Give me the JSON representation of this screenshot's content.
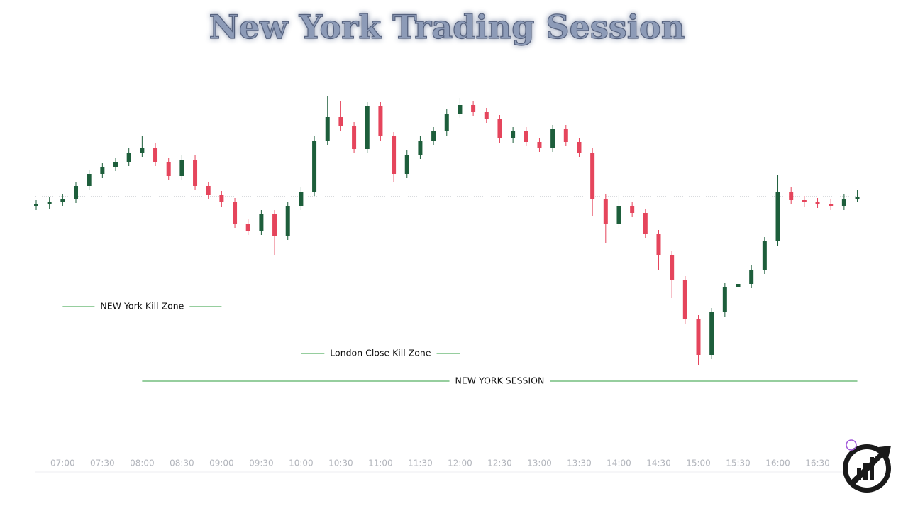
{
  "chart_data": {
    "type": "candlestick",
    "title": "New York Trading Session",
    "x": [
      "06:40",
      "06:50",
      "07:00",
      "07:10",
      "07:20",
      "07:30",
      "07:40",
      "07:50",
      "08:00",
      "08:10",
      "08:20",
      "08:30",
      "08:40",
      "08:50",
      "09:00",
      "09:10",
      "09:20",
      "09:30",
      "09:40",
      "09:50",
      "10:00",
      "10:10",
      "10:20",
      "10:30",
      "10:40",
      "10:50",
      "11:00",
      "11:10",
      "11:20",
      "11:30",
      "11:40",
      "11:50",
      "12:00",
      "12:10",
      "12:20",
      "12:30",
      "12:40",
      "12:50",
      "13:00",
      "13:10",
      "13:20",
      "13:30",
      "13:40",
      "13:50",
      "14:00",
      "14:10",
      "14:20",
      "14:30",
      "14:40",
      "14:50",
      "15:00",
      "15:10",
      "15:20",
      "15:30",
      "15:40",
      "15:50",
      "16:00",
      "16:10",
      "16:20",
      "16:30",
      "16:40",
      "16:50",
      "17:00"
    ],
    "open": [
      290,
      292,
      296,
      300,
      318,
      335,
      345,
      352,
      365,
      372,
      352,
      332,
      355,
      318,
      305,
      295,
      265,
      255,
      278,
      248,
      290,
      310,
      382,
      415,
      402,
      370,
      430,
      388,
      335,
      362,
      382,
      395,
      420,
      432,
      422,
      412,
      385,
      395,
      380,
      372,
      398,
      380,
      365,
      300,
      265,
      290,
      280,
      250,
      220,
      185,
      130,
      80,
      140,
      175,
      180,
      200,
      240,
      310,
      298,
      295,
      293,
      290,
      300
    ],
    "high": [
      298,
      302,
      306,
      324,
      341,
      351,
      358,
      371,
      388,
      378,
      358,
      361,
      361,
      324,
      311,
      301,
      271,
      284,
      284,
      296,
      316,
      388,
      445,
      438,
      408,
      436,
      436,
      394,
      368,
      388,
      401,
      426,
      442,
      438,
      428,
      418,
      401,
      401,
      386,
      404,
      404,
      386,
      371,
      306,
      305,
      296,
      286,
      256,
      226,
      191,
      136,
      146,
      181,
      186,
      206,
      246,
      333,
      316,
      304,
      301,
      299,
      306,
      312
    ],
    "low": [
      284,
      286,
      290,
      294,
      312,
      329,
      339,
      346,
      359,
      346,
      326,
      326,
      312,
      299,
      289,
      259,
      249,
      249,
      220,
      242,
      284,
      304,
      376,
      396,
      364,
      364,
      382,
      323,
      329,
      356,
      376,
      389,
      414,
      416,
      406,
      379,
      379,
      374,
      366,
      366,
      374,
      359,
      275,
      238,
      259,
      274,
      244,
      200,
      160,
      124,
      66,
      74,
      134,
      169,
      174,
      194,
      234,
      292,
      289,
      287,
      284,
      284,
      296
    ],
    "close": [
      292,
      296,
      300,
      318,
      335,
      345,
      352,
      365,
      372,
      352,
      332,
      355,
      318,
      305,
      295,
      265,
      255,
      278,
      248,
      290,
      310,
      382,
      415,
      402,
      370,
      430,
      388,
      335,
      362,
      382,
      395,
      420,
      432,
      422,
      412,
      385,
      395,
      380,
      372,
      398,
      380,
      365,
      300,
      265,
      290,
      280,
      250,
      220,
      185,
      130,
      80,
      140,
      175,
      180,
      200,
      240,
      310,
      298,
      295,
      293,
      290,
      300,
      302
    ],
    "up_color": "#1d5e3b",
    "down_color": "#e5455c",
    "ylim": [
      0,
      460
    ],
    "reference_line": 303,
    "xticks": [
      "07:00",
      "07:30",
      "08:00",
      "08:30",
      "09:00",
      "09:30",
      "10:00",
      "10:30",
      "11:00",
      "11:30",
      "12:00",
      "12:30",
      "13:00",
      "13:30",
      "14:00",
      "14:30",
      "15:00",
      "15:30",
      "16:00",
      "16:30"
    ],
    "annotations": [
      {
        "label": "NEW York Kill Zone",
        "start": "07:00",
        "end": "09:00",
        "color": "#2e9e3e"
      },
      {
        "label": "London Close Kill Zone",
        "start": "10:00",
        "end": "12:00",
        "color": "#2e9e3e"
      },
      {
        "label": "NEW YORK SESSION",
        "start": "08:00",
        "end": "17:00",
        "color": "#2e9e3e"
      }
    ]
  }
}
